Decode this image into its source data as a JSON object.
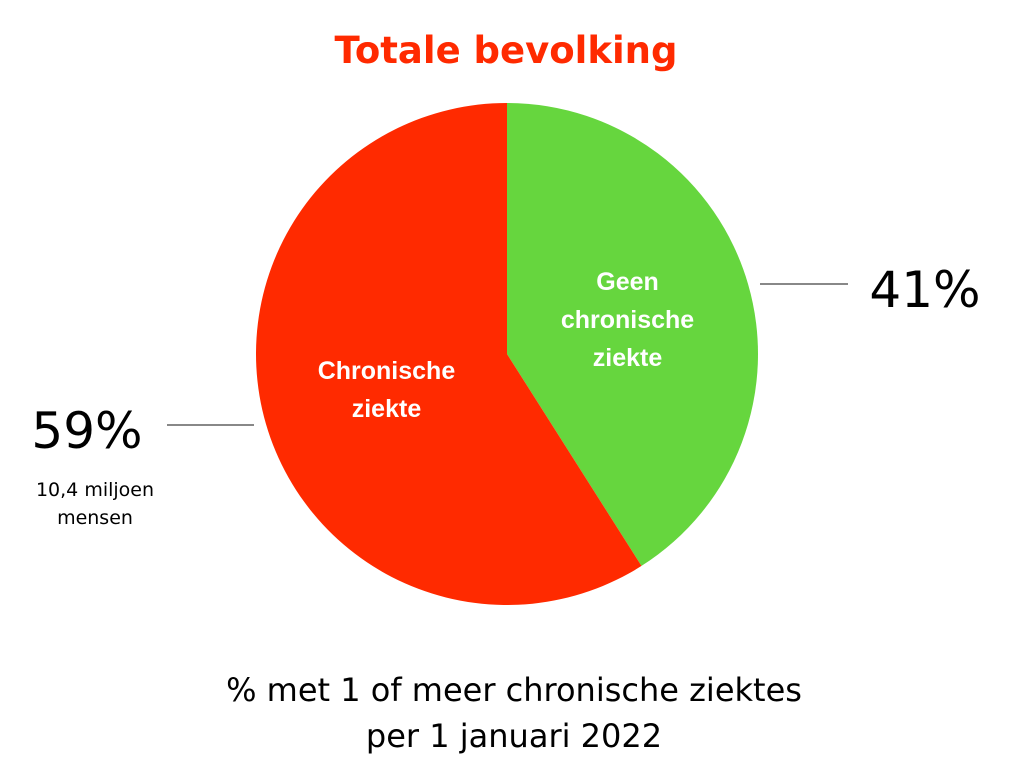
{
  "chart_data": {
    "type": "pie",
    "title": "Totale bevolking",
    "title_color": "#ff2a00",
    "start_angle_deg": 0,
    "direction": "clockwise",
    "slices": [
      {
        "label_lines": [
          "Geen",
          "chronische",
          "ziekte"
        ],
        "value": 41,
        "value_label": "41%",
        "color": "#66d63e",
        "label_color": "#ffffff"
      },
      {
        "label_lines": [
          "Chronische",
          "ziekte"
        ],
        "value": 59,
        "value_label": "59%",
        "note_lines": [
          "10,4 miljoen",
          "mensen"
        ],
        "color": "#ff2a00",
        "label_color": "#ffffff"
      }
    ],
    "caption_lines": [
      "% met 1 of meer chronische ziektes",
      "per 1 januari 2022"
    ]
  }
}
